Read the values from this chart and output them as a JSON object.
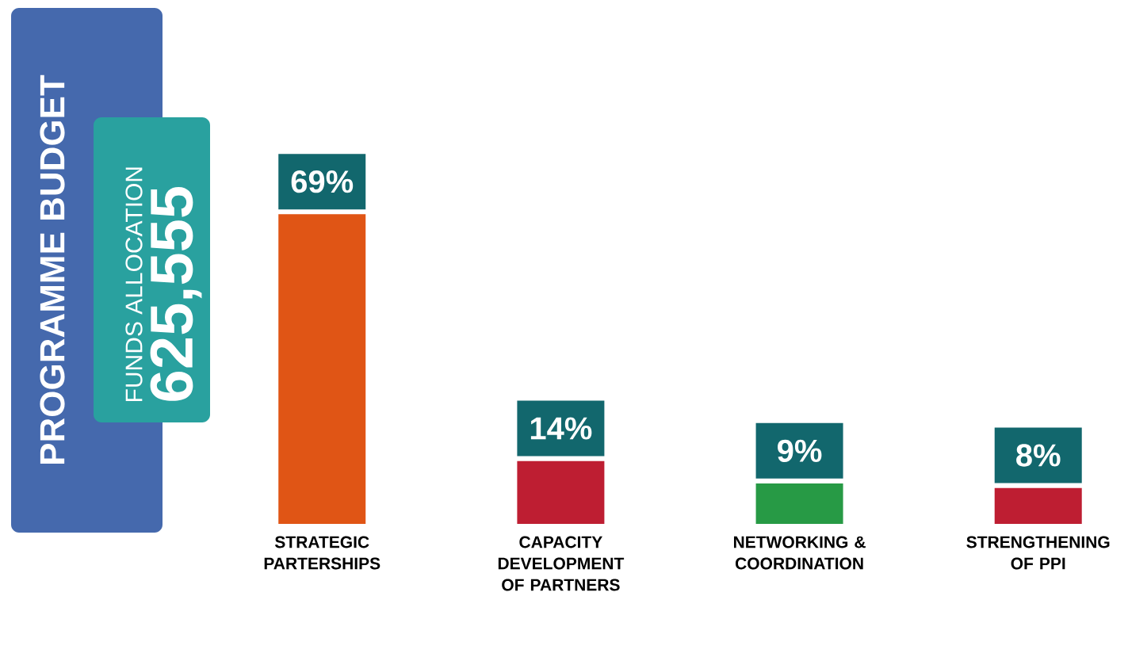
{
  "chart_data": {
    "type": "bar",
    "title": "PROGRAMME BUDGET",
    "subtitle": "FUNDS ALLOCATION",
    "annotations": [
      "625,555"
    ],
    "categories": [
      "STRATEGIC PARTERSHIPS",
      "CAPACITY DEVELOPMENT OF PARTNERS",
      "NETWORKING & COORDINATION",
      "STRENGTHENING OF PPI"
    ],
    "values": [
      69,
      14,
      9,
      8
    ],
    "colors": [
      "#e05515",
      "#be1e32",
      "#279a45",
      "#be1e32"
    ],
    "value_labels": [
      "69%",
      "14%",
      "9%",
      "8%"
    ]
  }
}
